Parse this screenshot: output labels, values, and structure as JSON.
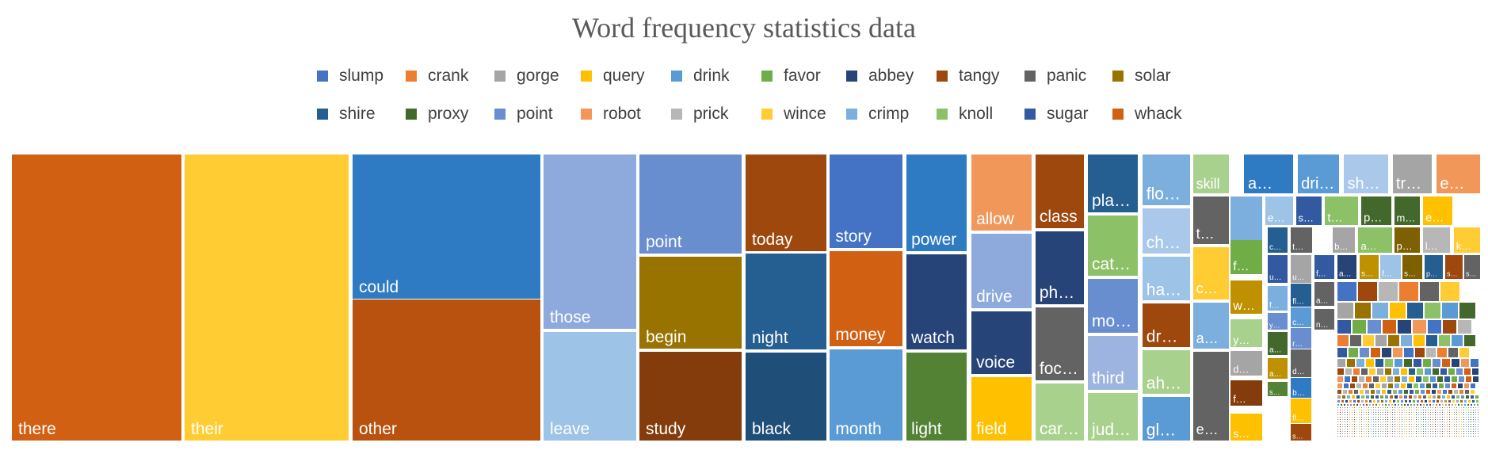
{
  "chart_data": {
    "type": "treemap",
    "title": "Word frequency statistics data",
    "legend_position": "top",
    "categories": [
      {
        "name": "slump",
        "color": "#4472C4"
      },
      {
        "name": "crank",
        "color": "#ED7D31"
      },
      {
        "name": "gorge",
        "color": "#A5A5A5"
      },
      {
        "name": "query",
        "color": "#FFC000"
      },
      {
        "name": "drink",
        "color": "#5B9BD5"
      },
      {
        "name": "favor",
        "color": "#70AD47"
      },
      {
        "name": "abbey",
        "color": "#264478"
      },
      {
        "name": "tangy",
        "color": "#9E480E"
      },
      {
        "name": "panic",
        "color": "#636363"
      },
      {
        "name": "solar",
        "color": "#997300"
      },
      {
        "name": "shire",
        "color": "#255E91"
      },
      {
        "name": "proxy",
        "color": "#43682B"
      },
      {
        "name": "point",
        "color": "#698ED0"
      },
      {
        "name": "robot",
        "color": "#F1975A"
      },
      {
        "name": "prick",
        "color": "#B7B7B7"
      },
      {
        "name": "wince",
        "color": "#FFCD33"
      },
      {
        "name": "crimp",
        "color": "#7CAFDD"
      },
      {
        "name": "knoll",
        "color": "#8CC168"
      },
      {
        "name": "sugar",
        "color": "#335AA1"
      },
      {
        "name": "whack",
        "color": "#D26012"
      }
    ],
    "items": [
      {
        "label": "there",
        "color": "#D26012"
      },
      {
        "label": "their",
        "color": "#FFCD33"
      },
      {
        "label": "could",
        "color": "#2E7BC4"
      },
      {
        "label": "other",
        "color": "#B8520E"
      },
      {
        "label": "those",
        "color": "#8EAADC"
      },
      {
        "label": "leave",
        "color": "#9DC3E6"
      },
      {
        "label": "point",
        "color": "#698ED0"
      },
      {
        "label": "begin",
        "color": "#997300"
      },
      {
        "label": "study",
        "color": "#843C0C"
      },
      {
        "label": "today",
        "color": "#9E480E"
      },
      {
        "label": "night",
        "color": "#255E91"
      },
      {
        "label": "black",
        "color": "#1F4E79"
      },
      {
        "label": "story",
        "color": "#4472C4"
      },
      {
        "label": "money",
        "color": "#D26012"
      },
      {
        "label": "month",
        "color": "#5B9BD5"
      },
      {
        "label": "power",
        "color": "#2E7BC4"
      },
      {
        "label": "watch",
        "color": "#264478"
      },
      {
        "label": "light",
        "color": "#548235"
      },
      {
        "label": "allow",
        "color": "#F1975A"
      },
      {
        "label": "drive",
        "color": "#8EAADC"
      },
      {
        "label": "voice",
        "color": "#264478"
      },
      {
        "label": "field",
        "color": "#FFC000"
      },
      {
        "label": "class",
        "color": "#9E480E"
      },
      {
        "label": "ph…",
        "color": "#264478"
      },
      {
        "label": "foc…",
        "color": "#636363"
      },
      {
        "label": "car…",
        "color": "#A9D18E"
      },
      {
        "label": "pla…",
        "color": "#255E91"
      },
      {
        "label": "cat…",
        "color": "#8CC168"
      },
      {
        "label": "mo…",
        "color": "#698ED0"
      },
      {
        "label": "third",
        "color": "#9DB4E0"
      },
      {
        "label": "jud…",
        "color": "#A9D18E"
      },
      {
        "label": "flo…",
        "color": "#7CAFDD"
      },
      {
        "label": "ch…",
        "color": "#A9C8EA"
      },
      {
        "label": "ha…",
        "color": "#9DC3E6"
      },
      {
        "label": "dr…",
        "color": "#9E480E"
      },
      {
        "label": "ah…",
        "color": "#A9D18E"
      },
      {
        "label": "gl…",
        "color": "#5B9BD5"
      },
      {
        "label": "skill",
        "color": "#A9D18E"
      },
      {
        "label": "t…",
        "color": "#636363"
      },
      {
        "label": "c…",
        "color": "#FFCD33"
      },
      {
        "label": "a…",
        "color": "#7CAFDD"
      },
      {
        "label": "e…",
        "color": "#636363"
      },
      {
        "label": "a…",
        "color": "#2E7BC4"
      },
      {
        "label": "dri…",
        "color": "#5B9BD5"
      },
      {
        "label": "sh…",
        "color": "#A9C8EA"
      },
      {
        "label": "tr…",
        "color": "#A5A5A5"
      },
      {
        "label": "e…",
        "color": "#F1975A"
      },
      {
        "label": "s…",
        "color": "#7CAFDD"
      },
      {
        "label": "f…",
        "color": "#70AD47"
      },
      {
        "label": "w…",
        "color": "#BF9000"
      },
      {
        "label": "y…",
        "color": "#A9D18E"
      },
      {
        "label": "d…",
        "color": "#A5A5A5"
      },
      {
        "label": "f…",
        "color": "#843C0C"
      },
      {
        "label": "s…",
        "color": "#FFC000"
      },
      {
        "label": "e…",
        "color": "#9DC3E6"
      },
      {
        "label": "s…",
        "color": "#335AA1"
      },
      {
        "label": "t…",
        "color": "#8CC168"
      },
      {
        "label": "p…",
        "color": "#43682B"
      },
      {
        "label": "m…",
        "color": "#43682B"
      },
      {
        "label": "e…",
        "color": "#FFC000"
      },
      {
        "label": "c…",
        "color": "#255E91"
      },
      {
        "label": "t…",
        "color": "#636363"
      },
      {
        "label": "b…",
        "color": "#A5A5A5"
      },
      {
        "label": "a…",
        "color": "#8CC168"
      },
      {
        "label": "p…",
        "color": "#7F6000"
      },
      {
        "label": "l…",
        "color": "#B7B7B7"
      },
      {
        "label": "k…",
        "color": "#FFCD33"
      },
      {
        "label": "u…",
        "color": "#335AA1"
      },
      {
        "label": "f…",
        "color": "#7CAFDD"
      },
      {
        "label": "y…",
        "color": "#698ED0"
      },
      {
        "label": "a…",
        "color": "#43682B"
      },
      {
        "label": "a…",
        "color": "#BF9000"
      },
      {
        "label": "s…",
        "color": "#548235"
      },
      {
        "label": "u…",
        "color": "#A5A5A5"
      },
      {
        "label": "fl…",
        "color": "#255E91"
      },
      {
        "label": "c…",
        "color": "#5B9BD5"
      },
      {
        "label": "r…",
        "color": "#698ED0"
      },
      {
        "label": "d…",
        "color": "#636363"
      },
      {
        "label": "b…",
        "color": "#2E7BC4"
      },
      {
        "label": "fl…",
        "color": "#FFC000"
      },
      {
        "label": "s…",
        "color": "#9E480E"
      },
      {
        "label": "f…",
        "color": "#335AA1"
      },
      {
        "label": "a…",
        "color": "#636363"
      },
      {
        "label": "n…",
        "color": "#636363"
      },
      {
        "label": "a…",
        "color": "#264478"
      },
      {
        "label": "s…",
        "color": "#BF9000"
      },
      {
        "label": "f…",
        "color": "#9DC3E6"
      },
      {
        "label": "s…",
        "color": "#7F6000"
      },
      {
        "label": "p…",
        "color": "#255E91"
      },
      {
        "label": "s…",
        "color": "#9E480E"
      },
      {
        "label": "s…",
        "color": "#636363"
      },
      {
        "label": "a…",
        "color": "#D26012"
      }
    ]
  }
}
